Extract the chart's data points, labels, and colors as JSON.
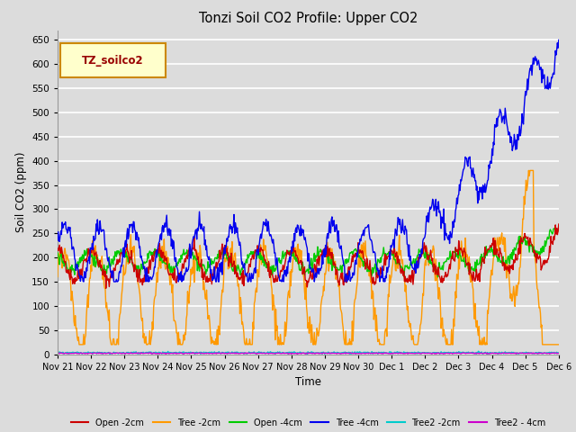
{
  "title": "Tonzi Soil CO2 Profile: Upper CO2",
  "xlabel": "Time",
  "ylabel": "Soil CO2 (ppm)",
  "ylim": [
    0,
    670
  ],
  "yticks": [
    0,
    50,
    100,
    150,
    200,
    250,
    300,
    350,
    400,
    450,
    500,
    550,
    600,
    650
  ],
  "background_color": "#dcdcdc",
  "plot_bg_color": "#dcdcdc",
  "grid_color": "#ffffff",
  "legend_label": "TZ_soilco2",
  "legend_bg": "#ffffcc",
  "legend_border": "#cc8800",
  "series_labels": [
    "Open -2cm",
    "Tree -2cm",
    "Open -4cm",
    "Tree -4cm",
    "Tree2 -2cm",
    "Tree2 - 4cm"
  ],
  "series_colors": [
    "#cc0000",
    "#ff9900",
    "#00cc00",
    "#0000ee",
    "#00cccc",
    "#cc00cc"
  ],
  "line_width": 1.0,
  "x_labels": [
    "Nov 21",
    "Nov 22",
    "Nov 23",
    "Nov 24",
    "Nov 25",
    "Nov 26",
    "Nov 27",
    "Nov 28",
    "Nov 29",
    "Nov 30",
    "Dec 1",
    "Dec 2",
    "Dec 3",
    "Dec 4",
    "Dec 5",
    "Dec 6"
  ],
  "seed": 42
}
